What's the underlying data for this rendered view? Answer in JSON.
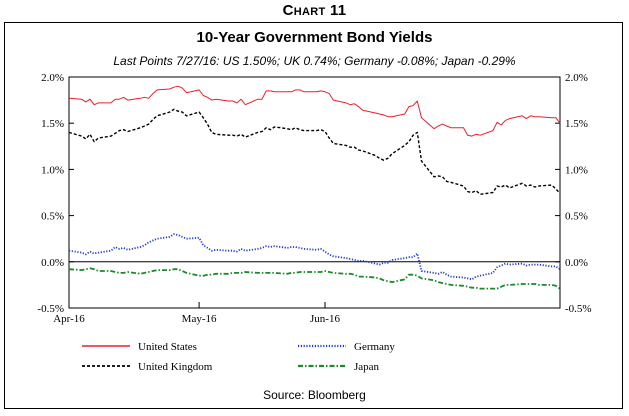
{
  "chart_number": "Chart 11",
  "source": "Source: Bloomberg",
  "chart_data": {
    "type": "line",
    "title": "10-Year Government Bond Yields",
    "subtitle": "Last Points 7/27/16: US 1.50%; UK 0.74%; Germany -0.08%; Japan -0.29%",
    "xlabel": "",
    "ylabel": "",
    "ylim": [
      -0.5,
      2.0
    ],
    "yticks": [
      2.0,
      1.5,
      1.0,
      0.5,
      0.0,
      -0.5
    ],
    "ytick_labels": [
      "2.0%",
      "1.5%",
      "1.0%",
      "0.5%",
      "0.0%",
      "-0.5%"
    ],
    "xticks": [
      {
        "label": "Apr-16",
        "date": "2016-04-01"
      },
      {
        "label": "May-16",
        "date": "2016-05-02"
      },
      {
        "label": "Jun-16",
        "date": "2016-06-01"
      }
    ],
    "x": [
      "2016-04-01",
      "2016-04-04",
      "2016-04-05",
      "2016-04-06",
      "2016-04-07",
      "2016-04-08",
      "2016-04-11",
      "2016-04-12",
      "2016-04-13",
      "2016-04-14",
      "2016-04-15",
      "2016-04-18",
      "2016-04-19",
      "2016-04-20",
      "2016-04-21",
      "2016-04-22",
      "2016-04-25",
      "2016-04-26",
      "2016-04-27",
      "2016-04-28",
      "2016-04-29",
      "2016-05-02",
      "2016-05-03",
      "2016-05-04",
      "2016-05-05",
      "2016-05-06",
      "2016-05-09",
      "2016-05-10",
      "2016-05-11",
      "2016-05-12",
      "2016-05-13",
      "2016-05-16",
      "2016-05-17",
      "2016-05-18",
      "2016-05-19",
      "2016-05-20",
      "2016-05-23",
      "2016-05-24",
      "2016-05-25",
      "2016-05-26",
      "2016-05-27",
      "2016-05-30",
      "2016-05-31",
      "2016-06-01",
      "2016-06-02",
      "2016-06-03",
      "2016-06-06",
      "2016-06-07",
      "2016-06-08",
      "2016-06-09",
      "2016-06-10",
      "2016-06-13",
      "2016-06-14",
      "2016-06-15",
      "2016-06-16",
      "2016-06-17",
      "2016-06-20",
      "2016-06-21",
      "2016-06-22",
      "2016-06-23",
      "2016-06-24",
      "2016-06-27",
      "2016-06-28",
      "2016-06-29",
      "2016-06-30",
      "2016-07-01",
      "2016-07-04",
      "2016-07-05",
      "2016-07-06",
      "2016-07-07",
      "2016-07-08",
      "2016-07-11",
      "2016-07-12",
      "2016-07-13",
      "2016-07-14",
      "2016-07-15",
      "2016-07-18",
      "2016-07-19",
      "2016-07-20",
      "2016-07-21",
      "2016-07-22",
      "2016-07-25",
      "2016-07-26",
      "2016-07-27"
    ],
    "series": [
      {
        "name": "United States",
        "color": "#e8212b",
        "dash": "solid",
        "values": [
          1.77,
          1.76,
          1.73,
          1.76,
          1.7,
          1.72,
          1.72,
          1.76,
          1.76,
          1.78,
          1.75,
          1.77,
          1.78,
          1.77,
          1.82,
          1.86,
          1.87,
          1.89,
          1.9,
          1.88,
          1.83,
          1.86,
          1.8,
          1.78,
          1.75,
          1.76,
          1.74,
          1.74,
          1.72,
          1.76,
          1.7,
          1.76,
          1.76,
          1.85,
          1.85,
          1.84,
          1.84,
          1.84,
          1.86,
          1.86,
          1.84,
          1.84,
          1.85,
          1.84,
          1.82,
          1.75,
          1.72,
          1.7,
          1.71,
          1.68,
          1.64,
          1.61,
          1.6,
          1.59,
          1.57,
          1.57,
          1.6,
          1.68,
          1.69,
          1.74,
          1.56,
          1.44,
          1.47,
          1.49,
          1.47,
          1.45,
          1.45,
          1.37,
          1.36,
          1.38,
          1.37,
          1.42,
          1.51,
          1.48,
          1.53,
          1.55,
          1.58,
          1.55,
          1.58,
          1.57,
          1.57,
          1.56,
          1.56,
          1.5
        ]
      },
      {
        "name": "United Kingdom",
        "color": "#000000",
        "dash": "dashed",
        "values": [
          1.4,
          1.36,
          1.33,
          1.38,
          1.3,
          1.34,
          1.36,
          1.39,
          1.42,
          1.43,
          1.41,
          1.45,
          1.47,
          1.49,
          1.54,
          1.58,
          1.62,
          1.65,
          1.63,
          1.62,
          1.58,
          1.62,
          1.56,
          1.49,
          1.4,
          1.38,
          1.37,
          1.37,
          1.36,
          1.38,
          1.35,
          1.4,
          1.41,
          1.45,
          1.43,
          1.46,
          1.44,
          1.43,
          1.45,
          1.43,
          1.42,
          1.42,
          1.43,
          1.41,
          1.34,
          1.28,
          1.26,
          1.24,
          1.24,
          1.21,
          1.2,
          1.15,
          1.12,
          1.1,
          1.12,
          1.17,
          1.26,
          1.3,
          1.37,
          1.4,
          1.09,
          0.92,
          0.93,
          0.92,
          0.87,
          0.86,
          0.82,
          0.76,
          0.75,
          0.77,
          0.73,
          0.75,
          0.82,
          0.81,
          0.83,
          0.8,
          0.85,
          0.82,
          0.83,
          0.81,
          0.82,
          0.83,
          0.79,
          0.74
        ]
      },
      {
        "name": "Germany",
        "color": "#1f3bd6",
        "dash": "dotted",
        "values": [
          0.12,
          0.1,
          0.08,
          0.11,
          0.09,
          0.1,
          0.12,
          0.16,
          0.14,
          0.15,
          0.13,
          0.16,
          0.18,
          0.21,
          0.23,
          0.25,
          0.27,
          0.3,
          0.29,
          0.27,
          0.25,
          0.26,
          0.18,
          0.15,
          0.12,
          0.13,
          0.12,
          0.12,
          0.11,
          0.14,
          0.12,
          0.14,
          0.15,
          0.17,
          0.16,
          0.17,
          0.15,
          0.16,
          0.16,
          0.15,
          0.14,
          0.13,
          0.14,
          0.11,
          0.08,
          0.06,
          0.04,
          0.03,
          0.02,
          0.01,
          0.01,
          -0.02,
          -0.03,
          -0.01,
          -0.01,
          0.02,
          0.04,
          0.05,
          0.05,
          0.09,
          -0.1,
          -0.12,
          -0.13,
          -0.11,
          -0.14,
          -0.16,
          -0.17,
          -0.18,
          -0.19,
          -0.16,
          -0.15,
          -0.12,
          -0.06,
          -0.04,
          -0.02,
          -0.03,
          -0.02,
          -0.04,
          -0.03,
          -0.03,
          -0.03,
          -0.05,
          -0.05,
          -0.08
        ]
      },
      {
        "name": "Japan",
        "color": "#1a8a2a",
        "dash": "dashdot",
        "values": [
          -0.08,
          -0.09,
          -0.08,
          -0.07,
          -0.08,
          -0.1,
          -0.1,
          -0.11,
          -0.12,
          -0.12,
          -0.11,
          -0.13,
          -0.12,
          -0.11,
          -0.1,
          -0.09,
          -0.09,
          -0.08,
          -0.08,
          -0.1,
          -0.12,
          -0.15,
          -0.15,
          -0.14,
          -0.14,
          -0.13,
          -0.13,
          -0.12,
          -0.12,
          -0.12,
          -0.11,
          -0.12,
          -0.12,
          -0.12,
          -0.12,
          -0.12,
          -0.13,
          -0.12,
          -0.12,
          -0.11,
          -0.11,
          -0.11,
          -0.11,
          -0.1,
          -0.11,
          -0.12,
          -0.13,
          -0.13,
          -0.14,
          -0.16,
          -0.16,
          -0.17,
          -0.18,
          -0.2,
          -0.21,
          -0.22,
          -0.19,
          -0.14,
          -0.14,
          -0.15,
          -0.18,
          -0.2,
          -0.22,
          -0.23,
          -0.24,
          -0.25,
          -0.26,
          -0.27,
          -0.28,
          -0.28,
          -0.29,
          -0.29,
          -0.29,
          -0.27,
          -0.25,
          -0.25,
          -0.24,
          -0.24,
          -0.24,
          -0.24,
          -0.25,
          -0.25,
          -0.26,
          -0.29
        ]
      }
    ],
    "legend_position": "bottom",
    "grid": false
  }
}
